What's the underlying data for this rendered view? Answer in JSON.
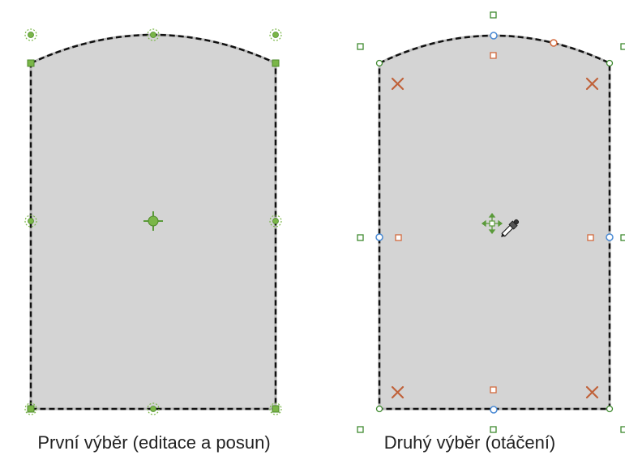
{
  "captions": {
    "first": "První výběr (editace a posun)",
    "second": "Druhý výběr (otáčení)"
  },
  "colors": {
    "shape_fill": "#d4d4d4",
    "outline": "#111111",
    "edit_handle": "#7ab648",
    "edit_handle_dark": "#4e8a2a",
    "rotate_handle": "#4a8ad4",
    "skew_handle": "#d2693c",
    "scale_handle": "#5a9a3a"
  },
  "icons": {
    "center_first": "center-crosshair-icon",
    "center_second": "move-arrows-icon",
    "cursor": "eyedropper-icon",
    "corner_marker": "x-mark-icon"
  }
}
